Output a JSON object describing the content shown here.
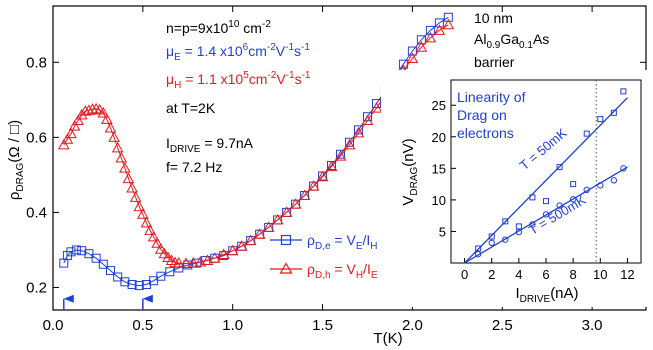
{
  "chart_data": {
    "main": {
      "type": "scatter",
      "xlabel": "T(K)",
      "ylabel_main": "ρ",
      "ylabel_sub": "DRAG",
      "ylabel_tail": "(Ω / □)",
      "xlim": [
        0.0,
        3.3
      ],
      "ylim": [
        0.14,
        0.95
      ],
      "x_ticks": [
        "0.0",
        "0.5",
        "1.0",
        "1.5",
        "2.0",
        "2.5",
        "3.0"
      ],
      "y_ticks": [
        "0.2",
        "0.4",
        "0.6",
        "0.8"
      ],
      "x_tick_values": [
        0.0,
        0.5,
        1.0,
        1.5,
        2.0,
        2.5,
        3.0
      ],
      "y_tick_values": [
        0.2,
        0.4,
        0.6,
        0.8
      ],
      "series": [
        {
          "name": "electrons",
          "color": "#1f3fd6",
          "marker": "square",
          "x": [
            0.06,
            0.08,
            0.1,
            0.13,
            0.16,
            0.2,
            0.24,
            0.28,
            0.32,
            0.36,
            0.4,
            0.44,
            0.48,
            0.52,
            0.56,
            0.6,
            0.65,
            0.7,
            0.75,
            0.8,
            0.85,
            0.9,
            0.95,
            1.0,
            1.05,
            1.1,
            1.15,
            1.2,
            1.25,
            1.3,
            1.35,
            1.4,
            1.45,
            1.5,
            1.55,
            1.6,
            1.65,
            1.7,
            1.75,
            1.8,
            1.85,
            1.9,
            1.95,
            2.0,
            2.05,
            2.1,
            2.15,
            2.2
          ],
          "y": [
            0.265,
            0.285,
            0.295,
            0.3,
            0.298,
            0.29,
            0.278,
            0.262,
            0.245,
            0.228,
            0.215,
            0.208,
            0.205,
            0.208,
            0.218,
            0.23,
            0.242,
            0.252,
            0.26,
            0.265,
            0.272,
            0.278,
            0.285,
            0.298,
            0.31,
            0.325,
            0.342,
            0.36,
            0.38,
            0.4,
            0.422,
            0.445,
            0.47,
            0.497,
            0.525,
            0.555,
            0.587,
            0.62,
            0.655,
            0.69,
            0.725,
            0.76,
            0.795,
            0.83,
            0.86,
            0.885,
            0.905,
            0.92
          ]
        },
        {
          "name": "holes",
          "color": "#e41a1c",
          "marker": "triangle",
          "x": [
            0.06,
            0.08,
            0.1,
            0.12,
            0.14,
            0.16,
            0.18,
            0.2,
            0.22,
            0.24,
            0.26,
            0.28,
            0.3,
            0.32,
            0.34,
            0.36,
            0.38,
            0.4,
            0.42,
            0.44,
            0.46,
            0.48,
            0.5,
            0.52,
            0.54,
            0.56,
            0.58,
            0.6,
            0.62,
            0.64,
            0.66,
            0.68,
            0.7,
            0.74,
            0.78,
            0.82,
            0.86,
            0.9,
            0.95,
            1.0,
            1.05,
            1.1,
            1.15,
            1.2,
            1.25,
            1.3,
            1.35,
            1.4,
            1.45,
            1.5,
            1.55,
            1.6,
            1.65,
            1.7,
            1.75,
            1.8,
            1.85,
            1.9,
            1.95,
            2.0,
            2.05,
            2.1,
            2.15,
            2.2
          ],
          "y": [
            0.58,
            0.595,
            0.61,
            0.63,
            0.645,
            0.66,
            0.67,
            0.672,
            0.675,
            0.676,
            0.673,
            0.665,
            0.648,
            0.625,
            0.6,
            0.572,
            0.545,
            0.518,
            0.49,
            0.465,
            0.44,
            0.415,
            0.395,
            0.372,
            0.352,
            0.335,
            0.318,
            0.302,
            0.29,
            0.28,
            0.272,
            0.266,
            0.265,
            0.264,
            0.265,
            0.268,
            0.272,
            0.278,
            0.288,
            0.298,
            0.31,
            0.325,
            0.342,
            0.36,
            0.38,
            0.4,
            0.422,
            0.445,
            0.47,
            0.495,
            0.522,
            0.55,
            0.58,
            0.612,
            0.645,
            0.678,
            0.712,
            0.745,
            0.778,
            0.81,
            0.84,
            0.865,
            0.885,
            0.9
          ]
        }
      ],
      "arrows_at_x": [
        0.06,
        0.5
      ],
      "legend": [
        {
          "label": "ρ_D,e = V_E/I_H",
          "parts": [
            "ρ",
            "D,e",
            " = V",
            "E",
            "/I",
            "H"
          ],
          "series": 0
        },
        {
          "label": "ρ_D,h = V_H/I_E",
          "parts": [
            "ρ",
            "D,h",
            " = V",
            "H",
            "/I",
            "E"
          ],
          "series": 1
        }
      ],
      "annotations": {
        "density": {
          "text": "n=p=9x10",
          "sup": "10",
          "tail": " cm",
          "sup2": "-2",
          "color": "#000000"
        },
        "mu_e": {
          "pre": "μ",
          "sub": "E",
          "mid": " = 1.4 x10",
          "sup": "6",
          "mid2": "cm",
          "sup2": "-2",
          "mid3": "V",
          "sup3": "-1",
          "mid4": "s",
          "sup4": "-1",
          "color": "#1f3fd6"
        },
        "mu_h": {
          "pre": "μ",
          "sub": "H",
          "mid": " = 1.1 x10",
          "sup": "5",
          "mid2": "cm",
          "sup2": "-2",
          "mid3": "V",
          "sup3": "-1",
          "mid4": "s",
          "sup4": "-1",
          "color": "#e41a1c"
        },
        "temp": "at T=2K",
        "drive": {
          "pre": "I",
          "sub": "DRIVE",
          "tail": " = 9.7nA"
        },
        "freq": "f= 7.2 Hz",
        "barrier_1": "10 nm",
        "barrier_2": {
          "a": "Al",
          "b": "0.9",
          "c": "Ga",
          "d": "0.1",
          "e": "As"
        },
        "barrier_3": "barrier"
      }
    },
    "inset": {
      "type": "scatter",
      "title_lines": [
        "Linearity of",
        "Drag on",
        "electrons"
      ],
      "title_color": "#1f3fd6",
      "xlabel_pre": "I",
      "xlabel_sub": "DRIVE",
      "xlabel_tail": "(nA)",
      "ylabel_pre": "V",
      "ylabel_sub": "DRAG",
      "ylabel_tail": "(nV)",
      "xlim": [
        -1,
        13
      ],
      "ylim": [
        0,
        29
      ],
      "x_ticks": [
        "0",
        "2",
        "4",
        "6",
        "8",
        "10",
        "12"
      ],
      "y_ticks": [
        "5",
        "10",
        "15",
        "20",
        "25"
      ],
      "x_tick_values": [
        0,
        2,
        4,
        6,
        8,
        10,
        12
      ],
      "y_tick_values": [
        5,
        10,
        15,
        20,
        25
      ],
      "dotted_x": 9.7,
      "series": [
        {
          "name": "T = 50mK",
          "color": "#1f3fd6",
          "marker": "square",
          "x": [
            1,
            2,
            3,
            4,
            5,
            6,
            7,
            8,
            9,
            10,
            11,
            11.7
          ],
          "y": [
            2.3,
            4.2,
            6.6,
            5.8,
            10.4,
            9.8,
            15.2,
            12.5,
            20.5,
            22.8,
            23.8,
            27.2
          ],
          "fit": [
            [
              0,
              0
            ],
            [
              12,
              26.2
            ]
          ],
          "label_at": [
            6.0,
            17.5
          ],
          "label_angle": -40
        },
        {
          "name": "T = 500mK",
          "color": "#1f3fd6",
          "marker": "circle",
          "x": [
            1,
            2,
            3,
            4,
            5,
            6,
            7,
            8,
            9,
            10,
            11,
            11.7
          ],
          "y": [
            1.4,
            3.2,
            3.7,
            4.9,
            6.1,
            7.7,
            9.1,
            10.1,
            11.6,
            12.3,
            13.1,
            15.0
          ],
          "fit": [
            [
              0,
              0
            ],
            [
              12,
              15.2
            ]
          ],
          "label_at": [
            7.0,
            7.0
          ],
          "label_angle": -31
        }
      ]
    }
  }
}
